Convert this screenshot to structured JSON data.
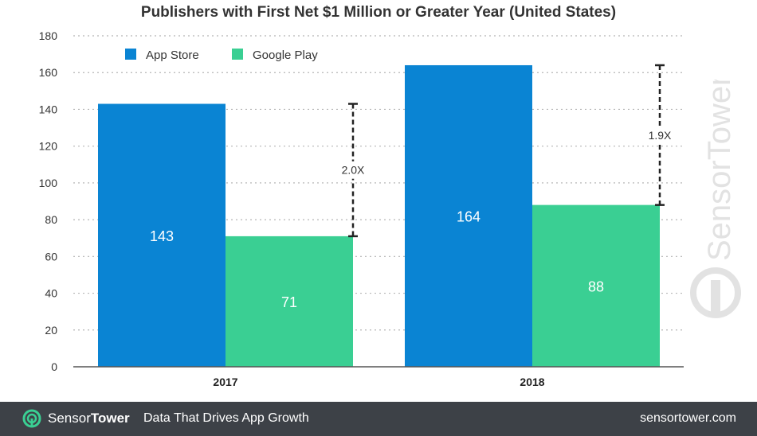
{
  "chart_data": {
    "type": "bar",
    "title": "Publishers with First Net $1 Million or Greater Year (United States)",
    "categories": [
      "2017",
      "2018"
    ],
    "series": [
      {
        "name": "App Store",
        "values": [
          143,
          164
        ],
        "color": "#0a84d3"
      },
      {
        "name": "Google Play",
        "values": [
          71,
          88
        ],
        "color": "#3acf93"
      }
    ],
    "ratios": [
      "2.0X",
      "1.9X"
    ],
    "ylim": [
      0,
      180
    ],
    "yticks": [
      0,
      20,
      40,
      60,
      80,
      100,
      120,
      140,
      160,
      180
    ],
    "grid": true,
    "legend": "top-left"
  },
  "watermark": {
    "text": "SensorTower",
    "icon": "sensor-tower-logo-icon"
  },
  "footer": {
    "brand_a": "Sensor",
    "brand_b": "Tower",
    "tagline": "Data That Drives App Growth",
    "url": "sensortower.com",
    "logo_icon": "sensor-tower-logo-icon"
  }
}
